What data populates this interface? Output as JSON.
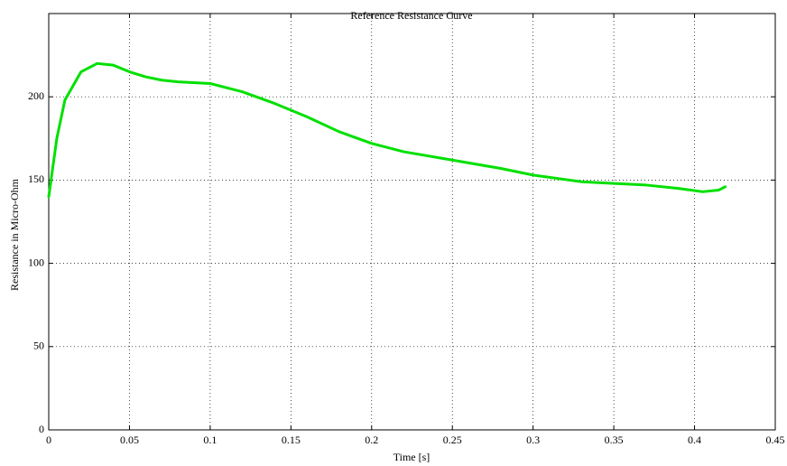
{
  "chart_data": {
    "type": "line",
    "title": "Reference Resistance Curve",
    "x_label": "Time [s]",
    "y_label": "Resistance in Micro-Ohm",
    "x": [
      0,
      0.005,
      0.01,
      0.02,
      0.03,
      0.04,
      0.05,
      0.06,
      0.07,
      0.08,
      0.1,
      0.12,
      0.14,
      0.16,
      0.18,
      0.2,
      0.22,
      0.25,
      0.28,
      0.3,
      0.33,
      0.35,
      0.37,
      0.39,
      0.405,
      0.415,
      0.419
    ],
    "series": [
      {
        "name": "Reference Resistance",
        "color": "#00e000",
        "values": [
          140,
          175,
          198,
          215,
          220,
          219,
          215,
          212,
          210,
          209,
          208,
          203,
          196,
          188,
          179,
          172,
          167,
          162,
          157,
          153,
          149,
          148,
          147,
          145,
          143,
          144,
          146
        ]
      }
    ],
    "xlim": [
      0,
      0.45
    ],
    "xticks": [
      0,
      0.05,
      0.1,
      0.15,
      0.2,
      0.25,
      0.3,
      0.35,
      0.4,
      0.45
    ],
    "ylim": [
      0,
      250
    ],
    "yticks": [
      0,
      50,
      100,
      150,
      200
    ],
    "grid": true
  }
}
